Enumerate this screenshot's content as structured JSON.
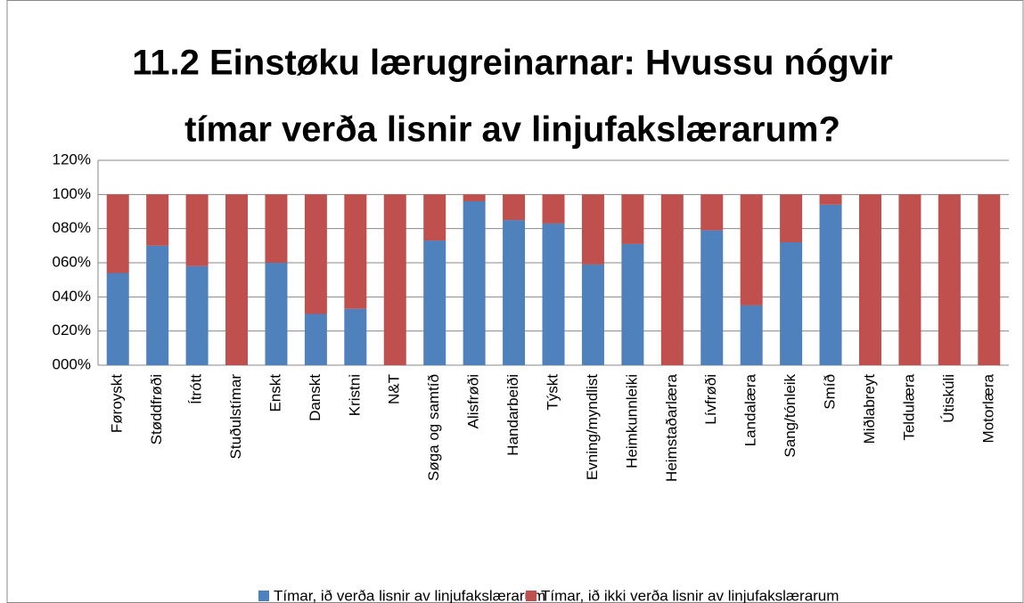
{
  "chart_data": {
    "type": "stacked_bar",
    "title": [
      "11.2 Einstøku lærugreinarnar: Hvussu nógvir",
      "tímar verða lisnir av linjufakslærarum?"
    ],
    "categories": [
      "Føroyskt",
      "Støddfrøði",
      "Ítrótt",
      "Stuðulstímar",
      "Enskt",
      "Danskt",
      "Kristni",
      "N&T",
      "Søga og samtíð",
      "Alisfrøði",
      "Handarbeiði",
      "Týskt",
      "Evning/myndlist",
      "Heimkunnleiki",
      "Heimstaðarlæra",
      "Lívfrøði",
      "Landalæra",
      "Sang/tónleik",
      "Smíð",
      "Miðlabreyt",
      "Teldulæra",
      "Útiskúli",
      "Motorlæra"
    ],
    "series": [
      {
        "name": "Tímar, ið verða lisnir av linjufakslærarum",
        "color": "#4f81bd",
        "values": [
          54,
          70,
          58,
          0,
          60,
          30,
          33,
          0,
          73,
          96,
          85,
          83,
          59,
          71,
          0,
          79,
          35,
          72,
          94,
          0,
          0,
          0,
          0
        ]
      },
      {
        "name": "Tímar, ið ikki verða lisnir av linjufakslærarum",
        "color": "#c0504d",
        "values": [
          46,
          30,
          42,
          100,
          40,
          70,
          67,
          100,
          27,
          4,
          15,
          17,
          41,
          29,
          100,
          21,
          65,
          28,
          6,
          100,
          100,
          100,
          100
        ]
      }
    ],
    "ylim": [
      0,
      120
    ],
    "yticks": [
      {
        "value": 0,
        "label": "000%"
      },
      {
        "value": 20,
        "label": "020%"
      },
      {
        "value": 40,
        "label": "040%"
      },
      {
        "value": 60,
        "label": "060%"
      },
      {
        "value": 80,
        "label": "080%"
      },
      {
        "value": 100,
        "label": "100%"
      },
      {
        "value": 120,
        "label": "120%"
      }
    ],
    "grid": true,
    "legend": "bottom"
  }
}
